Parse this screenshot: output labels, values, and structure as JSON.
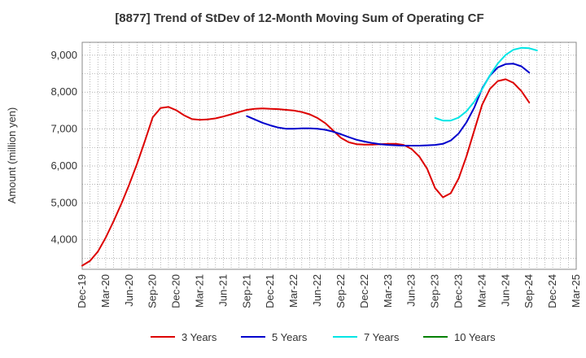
{
  "chart_data": {
    "type": "line",
    "title": "[8877]  Trend of StDev of 12-Month Moving Sum of Operating CF",
    "xlabel": "",
    "ylabel": "Amount (million yen)",
    "ylim": [
      3200,
      9350
    ],
    "yticks": [
      4000,
      5000,
      6000,
      7000,
      8000,
      9000
    ],
    "ytick_labels": [
      "4,000",
      "5,000",
      "6,000",
      "7,000",
      "8,000",
      "9,000"
    ],
    "x_start": "Dec-19",
    "x_months_total": 63,
    "x_ticks": [
      {
        "month": 0,
        "label": "Dec-19"
      },
      {
        "month": 3,
        "label": "Mar-20"
      },
      {
        "month": 6,
        "label": "Jun-20"
      },
      {
        "month": 9,
        "label": "Sep-20"
      },
      {
        "month": 12,
        "label": "Dec-20"
      },
      {
        "month": 15,
        "label": "Mar-21"
      },
      {
        "month": 18,
        "label": "Jun-21"
      },
      {
        "month": 21,
        "label": "Sep-21"
      },
      {
        "month": 24,
        "label": "Dec-21"
      },
      {
        "month": 27,
        "label": "Mar-22"
      },
      {
        "month": 30,
        "label": "Jun-22"
      },
      {
        "month": 33,
        "label": "Sep-22"
      },
      {
        "month": 36,
        "label": "Dec-22"
      },
      {
        "month": 39,
        "label": "Mar-23"
      },
      {
        "month": 42,
        "label": "Jun-23"
      },
      {
        "month": 45,
        "label": "Sep-23"
      },
      {
        "month": 48,
        "label": "Dec-23"
      },
      {
        "month": 51,
        "label": "Mar-24"
      },
      {
        "month": 54,
        "label": "Jun-24"
      },
      {
        "month": 57,
        "label": "Sep-24"
      },
      {
        "month": 60,
        "label": "Dec-24"
      },
      {
        "month": 63,
        "label": "Mar-25"
      }
    ],
    "grid": true,
    "legend_position": "bottom",
    "series": [
      {
        "name": "3 Years",
        "color": "#dd0000",
        "start_month": 0,
        "values": [
          3300,
          3430,
          3680,
          4060,
          4500,
          4980,
          5500,
          6060,
          6680,
          7320,
          7570,
          7600,
          7510,
          7370,
          7270,
          7250,
          7260,
          7290,
          7340,
          7400,
          7460,
          7520,
          7550,
          7560,
          7550,
          7540,
          7520,
          7500,
          7460,
          7400,
          7300,
          7160,
          6960,
          6760,
          6640,
          6590,
          6580,
          6580,
          6590,
          6600,
          6600,
          6570,
          6460,
          6250,
          5920,
          5400,
          5150,
          5260,
          5660,
          6260,
          6960,
          7660,
          8090,
          8300,
          8350,
          8250,
          8030,
          7720
        ]
      },
      {
        "name": "5 Years",
        "color": "#0000cc",
        "start_month": 21,
        "values": [
          7350,
          7260,
          7170,
          7100,
          7040,
          7010,
          7010,
          7020,
          7020,
          7010,
          6980,
          6930,
          6860,
          6780,
          6710,
          6660,
          6620,
          6590,
          6570,
          6560,
          6550,
          6550,
          6550,
          6560,
          6570,
          6600,
          6690,
          6880,
          7180,
          7580,
          8100,
          8450,
          8670,
          8760,
          8770,
          8700,
          8530
        ]
      },
      {
        "name": "7 Years",
        "color": "#00e5e5",
        "start_month": 45,
        "values": [
          7300,
          7230,
          7230,
          7310,
          7480,
          7740,
          8080,
          8460,
          8780,
          9010,
          9150,
          9200,
          9190,
          9130
        ]
      },
      {
        "name": "10 Years",
        "color": "#008000",
        "start_month": 0,
        "values": []
      }
    ]
  }
}
